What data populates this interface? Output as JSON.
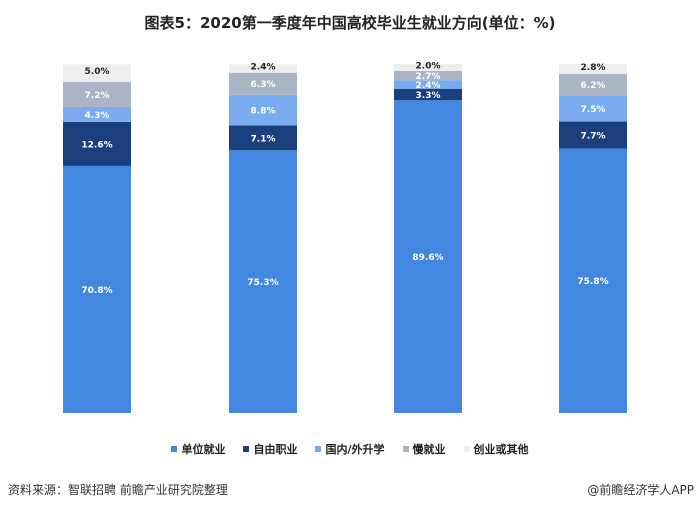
{
  "chart_data": {
    "type": "bar",
    "stacked": true,
    "title": "图表5：2020第一季度年中国高校毕业生就业方向(单位：%)",
    "categories": [
      "",
      "",
      "",
      ""
    ],
    "ylim": [
      0,
      100
    ],
    "grid": false,
    "legend_position": "bottom",
    "series": [
      {
        "name": "单位就业",
        "color": "#4287e0",
        "values": [
          70.8,
          75.3,
          89.6,
          75.8
        ]
      },
      {
        "name": "自由职业",
        "color": "#1b3f7c",
        "values": [
          12.6,
          7.1,
          3.3,
          7.7
        ]
      },
      {
        "name": "国内/外升学",
        "color": "#78acee",
        "values": [
          4.3,
          8.8,
          2.4,
          7.5
        ]
      },
      {
        "name": "慢就业",
        "color": "#aab4c4",
        "values": [
          7.2,
          6.3,
          2.7,
          6.2
        ]
      },
      {
        "name": "创业或其他",
        "color": "#eeeeee",
        "values": [
          5.0,
          2.4,
          2.0,
          2.8
        ]
      }
    ]
  },
  "footer": {
    "source": "资料来源：智联招聘 前瞻产业研究院整理",
    "brand": "@前瞻经济学人APP"
  }
}
